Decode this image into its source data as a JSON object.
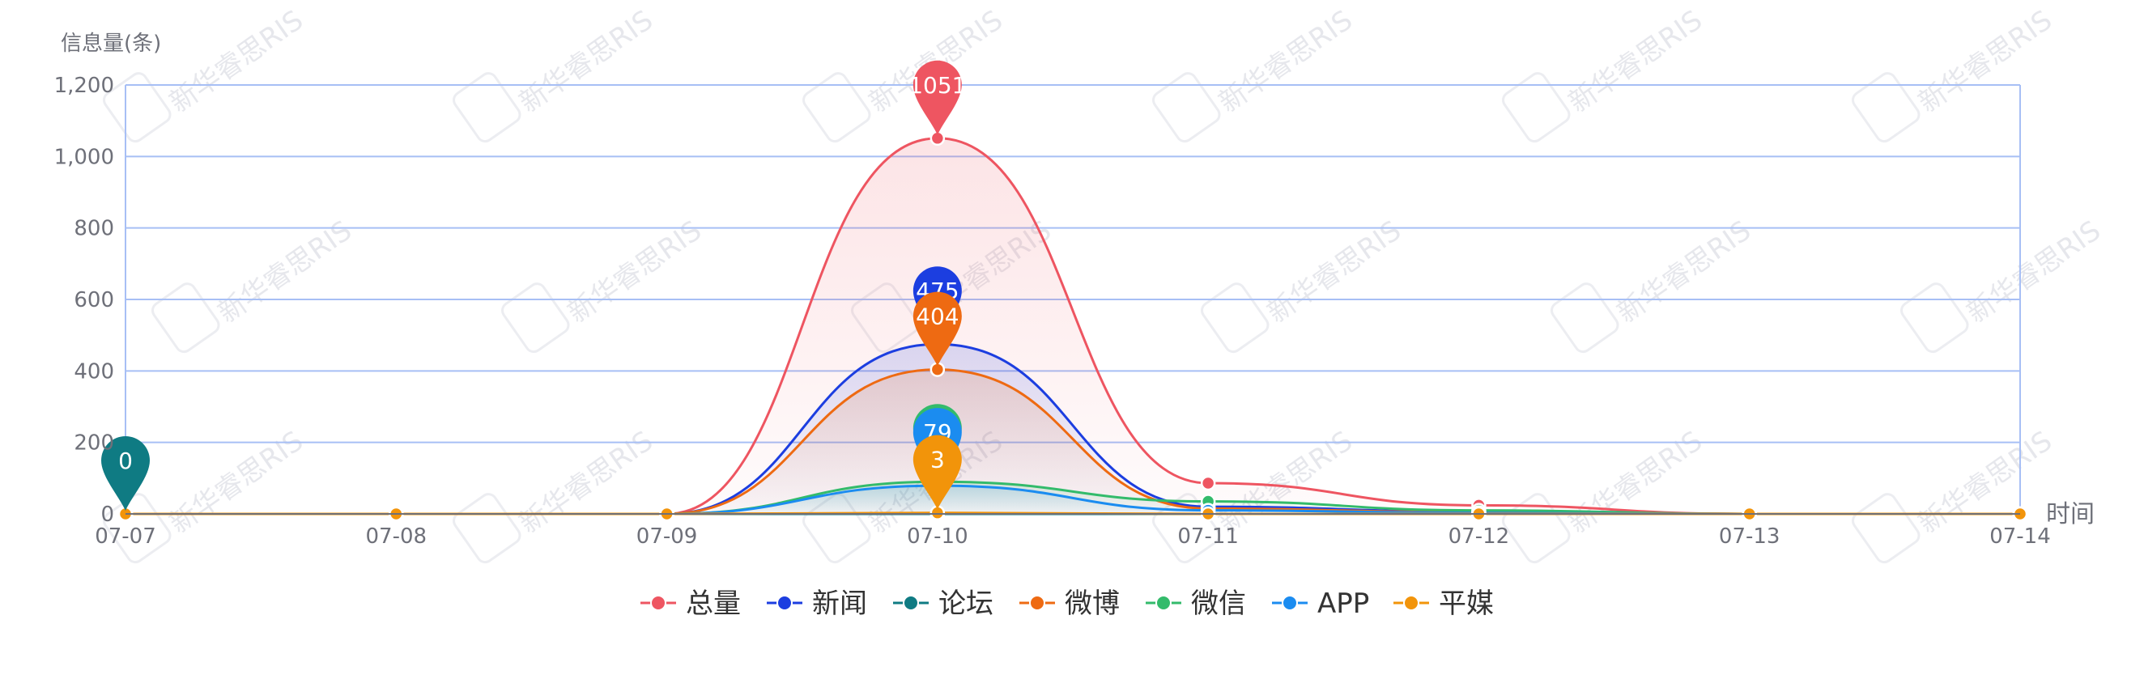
{
  "watermark": {
    "text": "新华睿思RIS"
  },
  "chart_data": {
    "type": "line",
    "ylabel": "信息量(条)",
    "xlabel": "时间",
    "ylim": [
      0,
      1200
    ],
    "yticks": [
      0,
      200,
      400,
      600,
      800,
      1000,
      1200
    ],
    "ytick_labels": [
      "0",
      "200",
      "400",
      "600",
      "800",
      "1,000",
      "1,200"
    ],
    "categories": [
      "07-07",
      "07-08",
      "07-09",
      "07-10",
      "07-11",
      "07-12",
      "07-13",
      "07-14"
    ],
    "grid": true,
    "legend_position": "bottom-center",
    "series": [
      {
        "name": "总量",
        "color": "#ee5561",
        "values": [
          0,
          0,
          0,
          1051,
          86,
          24,
          0,
          0
        ],
        "area": true,
        "markpoint": {
          "label": "1051",
          "index": 3
        }
      },
      {
        "name": "新闻",
        "color": "#1c3ee0",
        "values": [
          0,
          0,
          0,
          475,
          20,
          6,
          0,
          0
        ],
        "area": true,
        "markpoint": {
          "label": "475",
          "index": 3
        }
      },
      {
        "name": "论坛",
        "color": "#0f7b83",
        "values": [
          0,
          0,
          0,
          0,
          0,
          0,
          0,
          0
        ],
        "area": false,
        "markpoint": {
          "label": "0",
          "index": 0
        }
      },
      {
        "name": "微博",
        "color": "#ee6a12",
        "values": [
          0,
          0,
          0,
          404,
          15,
          4,
          0,
          0
        ],
        "area": true,
        "markpoint": {
          "label": "404",
          "index": 3
        }
      },
      {
        "name": "微信",
        "color": "#33bb6b",
        "values": [
          0,
          0,
          0,
          90,
          35,
          10,
          0,
          0
        ],
        "area": true,
        "markpoint": {
          "label": "",
          "index": 3
        }
      },
      {
        "name": "APP",
        "color": "#1b8cf0",
        "values": [
          0,
          0,
          0,
          79,
          10,
          3,
          0,
          0
        ],
        "area": true,
        "markpoint": {
          "label": "79",
          "index": 3
        }
      },
      {
        "name": "平媒",
        "color": "#f2940a",
        "values": [
          0,
          0,
          0,
          3,
          0,
          0,
          0,
          0
        ],
        "area": false,
        "markpoint": {
          "label": "3",
          "index": 3
        }
      }
    ]
  }
}
